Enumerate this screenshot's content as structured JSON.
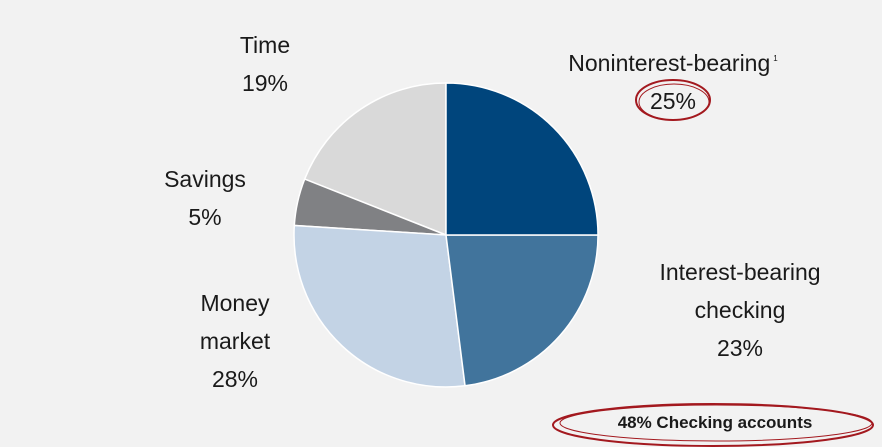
{
  "chart_data": {
    "type": "pie",
    "categories": [
      "Noninterest-bearing",
      "Interest-bearing checking",
      "Money market",
      "Savings",
      "Time"
    ],
    "values": [
      25,
      23,
      28,
      5,
      19
    ],
    "value_labels": [
      "25%",
      "23%",
      "28%",
      "5%",
      "19%"
    ],
    "colors": [
      "#00457c",
      "#41749c",
      "#c3d3e5",
      "#808184",
      "#d9d9d9"
    ],
    "footnote": "1",
    "annotation": "48% Checking accounts"
  }
}
